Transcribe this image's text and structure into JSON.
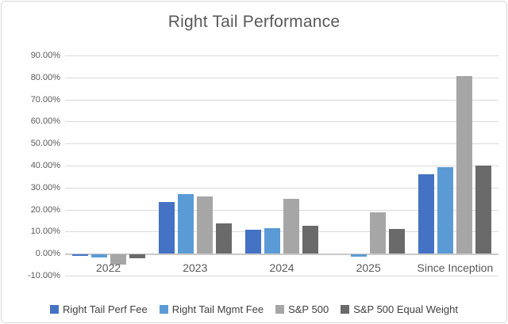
{
  "chart_data": {
    "type": "bar",
    "title": "Right Tail Performance",
    "categories": [
      "2022",
      "2023",
      "2024",
      "2025",
      "Since Inception"
    ],
    "series": [
      {
        "name": "Right Tail Perf Fee",
        "color": "#4472C4",
        "values": [
          -0.6,
          23.4,
          10.8,
          0.0,
          36.2
        ]
      },
      {
        "name": "Right Tail Mgmt Fee",
        "color": "#5B9BD5",
        "values": [
          -1.5,
          27.2,
          11.7,
          -1.0,
          39.3
        ]
      },
      {
        "name": "S&P 500",
        "color": "#A6A6A6",
        "values": [
          -4.5,
          26.0,
          25.0,
          18.8,
          80.6
        ]
      },
      {
        "name": "S&P 500 Equal Weight",
        "color": "#6A6A6A",
        "values": [
          -1.8,
          13.8,
          12.8,
          11.2,
          40.1
        ]
      }
    ],
    "ylim": [
      -10,
      90
    ],
    "ytick_step": 10,
    "ytick_format": "percent2",
    "grid": true,
    "legend_position": "bottom",
    "colors": {
      "title_text": "#595959",
      "axis_text": "#595959",
      "gridline": "#D9D9D9",
      "frame_border": "#D7D7D7",
      "background": "#FFFFFF"
    }
  }
}
